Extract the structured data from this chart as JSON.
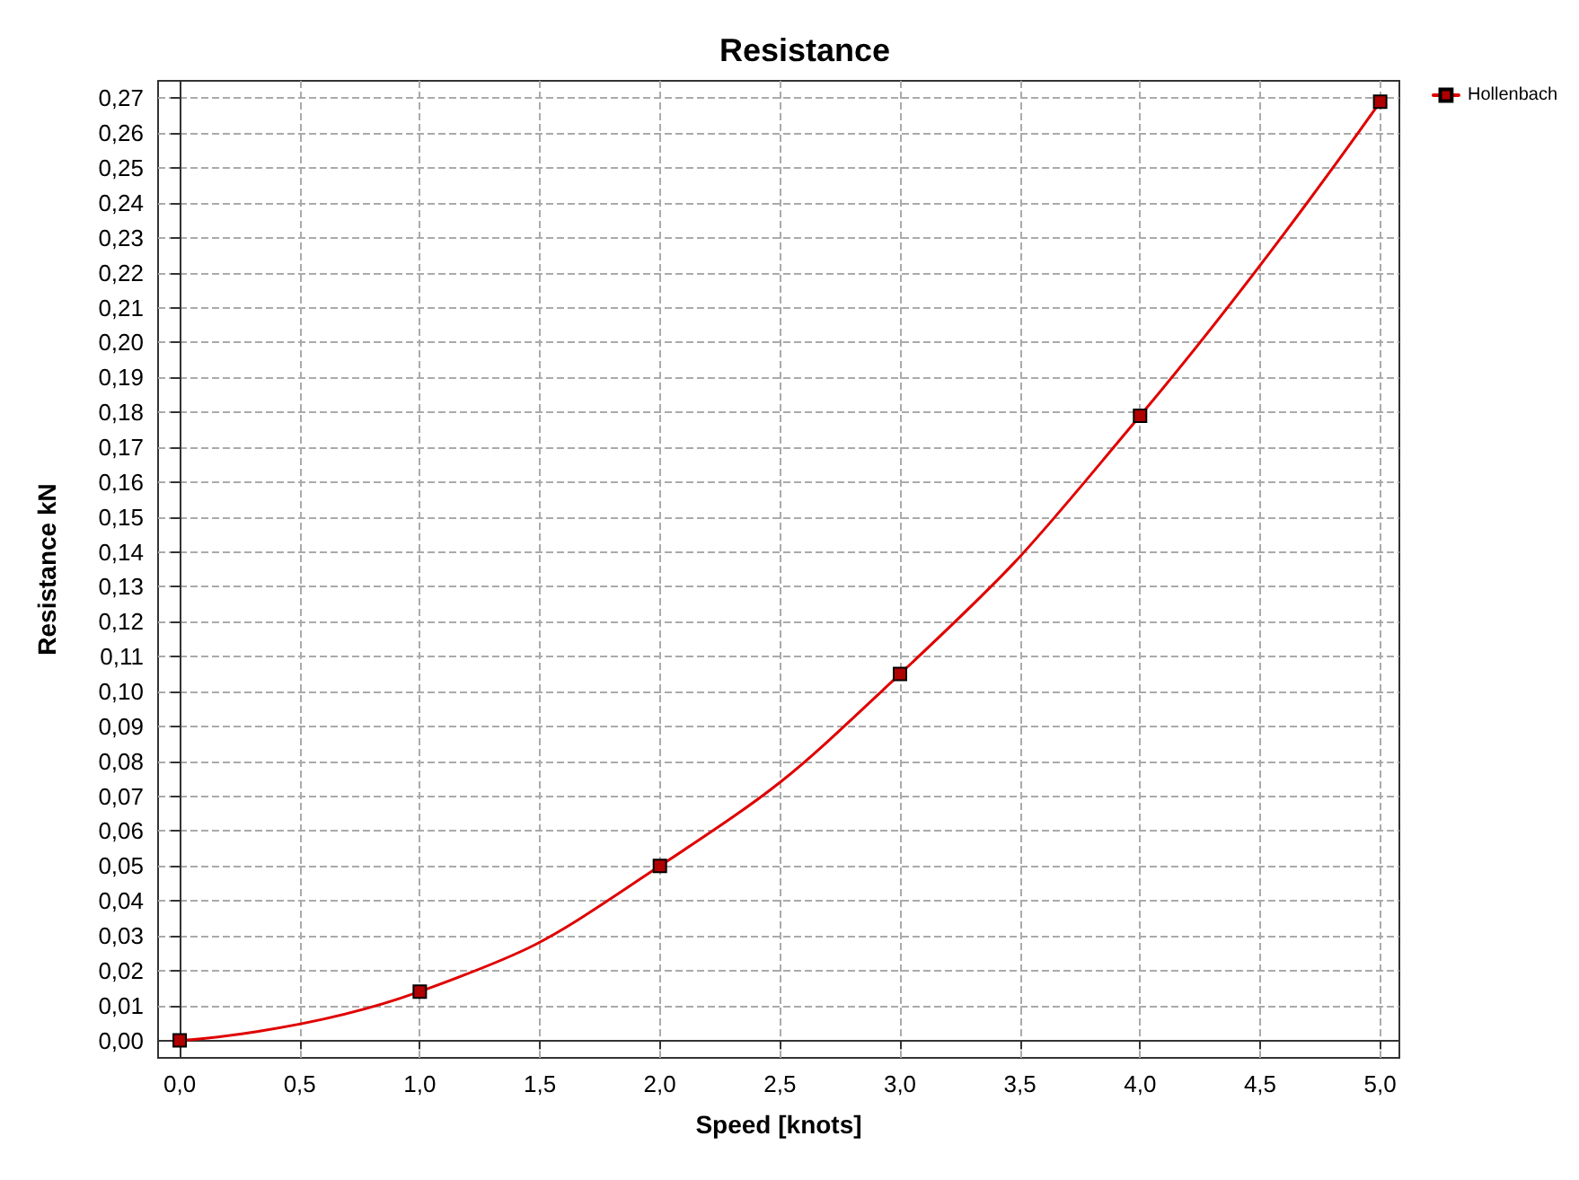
{
  "chart_data": {
    "type": "line",
    "title": "Resistance",
    "xlabel": "Speed [knots]",
    "ylabel": "Resistance kN",
    "x": [
      0,
      1,
      2,
      3,
      4,
      5
    ],
    "series": [
      {
        "name": "Hollenbach",
        "color": "#e00000",
        "values": [
          0,
          0.014,
          0.05,
          0.105,
          0.179,
          0.269
        ]
      }
    ],
    "xlim": [
      -0.09,
      5.08
    ],
    "ylim": [
      -0.005,
      0.275
    ],
    "xticks": [
      {
        "value": 0,
        "label": "0,0"
      },
      {
        "value": 0.5,
        "label": "0,5"
      },
      {
        "value": 1,
        "label": "1,0"
      },
      {
        "value": 1.5,
        "label": "1,5"
      },
      {
        "value": 2,
        "label": "2,0"
      },
      {
        "value": 2.5,
        "label": "2,5"
      },
      {
        "value": 3,
        "label": "3,0"
      },
      {
        "value": 3.5,
        "label": "3,5"
      },
      {
        "value": 4,
        "label": "4,0"
      },
      {
        "value": 4.5,
        "label": "4,5"
      },
      {
        "value": 5,
        "label": "5,0"
      }
    ],
    "yticks": [
      {
        "value": 0,
        "label": "0,00"
      },
      {
        "value": 0.01,
        "label": "0,01"
      },
      {
        "value": 0.02,
        "label": "0,02"
      },
      {
        "value": 0.03,
        "label": "0,03"
      },
      {
        "value": 0.04,
        "label": "0,04"
      },
      {
        "value": 0.05,
        "label": "0,05"
      },
      {
        "value": 0.06,
        "label": "0,06"
      },
      {
        "value": 0.07,
        "label": "0,07"
      },
      {
        "value": 0.08,
        "label": "0,08"
      },
      {
        "value": 0.09,
        "label": "0,09"
      },
      {
        "value": 0.1,
        "label": "0,10"
      },
      {
        "value": 0.11,
        "label": "0,11"
      },
      {
        "value": 0.12,
        "label": "0,12"
      },
      {
        "value": 0.13,
        "label": "0,13"
      },
      {
        "value": 0.14,
        "label": "0,14"
      },
      {
        "value": 0.15,
        "label": "0,15"
      },
      {
        "value": 0.16,
        "label": "0,16"
      },
      {
        "value": 0.17,
        "label": "0,17"
      },
      {
        "value": 0.18,
        "label": "0,18"
      },
      {
        "value": 0.19,
        "label": "0,19"
      },
      {
        "value": 0.2,
        "label": "0,20"
      },
      {
        "value": 0.21,
        "label": "0,21"
      },
      {
        "value": 0.22,
        "label": "0,22"
      },
      {
        "value": 0.23,
        "label": "0,23"
      },
      {
        "value": 0.24,
        "label": "0,24"
      },
      {
        "value": 0.25,
        "label": "0,25"
      },
      {
        "value": 0.26,
        "label": "0,26"
      },
      {
        "value": 0.27,
        "label": "0,27"
      }
    ],
    "grid": true,
    "legend": "top right",
    "marker": "square",
    "line_style": "solid"
  }
}
